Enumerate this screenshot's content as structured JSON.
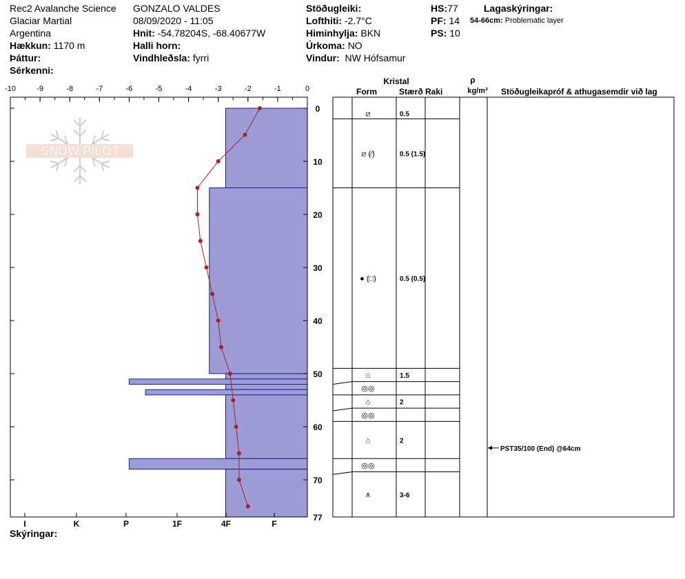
{
  "header": {
    "org": "Rec2 Avalanche Science",
    "location": "Glaciar Martial",
    "country": "Argentina",
    "elevation_label": "Hækkun:",
    "elevation": "1170 m",
    "layer_label": "Þáttur:",
    "features_label": "Sérkenni:",
    "observer": "GONZALO VALDES",
    "datetime": "08/09/2020 - 11:05",
    "coords_label": "Hnit:",
    "coords": "-54.78204S, -68.40677W",
    "slope_label": "Halli horn:",
    "wind_load_label": "Vindhleðsla:",
    "wind_load": "fyrri",
    "stability_label": "Stöðugleiki:",
    "air_temp_label": "Lofthiti:",
    "air_temp": "-2.7°C",
    "sky_label": "Himinhylja:",
    "sky": "BKN",
    "precip_label": "Úrkoma:",
    "precip": "NO",
    "wind_label": "Vindur:",
    "wind": "NW Hófsamur",
    "hs_label": "HS:",
    "hs": "77",
    "pf_label": "PF:",
    "pf": "14",
    "ps_label": "PS:",
    "ps": "10",
    "legend_title": "Lagaskýringar:",
    "legend_range": "54-66cm:",
    "legend_text": "Problematic layer",
    "footer_label": "Skýringar:"
  },
  "table": {
    "crystal": "Kristal",
    "form": "Form",
    "size": "Stærð",
    "moisture": "Raki",
    "rho": "ρ",
    "density_unit": "kg/m³",
    "tests_header": "Stöðugleikapróf & athugasemdir við lag",
    "test_note": "PST35/100 (End) @64cm",
    "test_depth": 64
  },
  "watermark": "SNOW PILOT",
  "colors": {
    "hardness_fill": "#9c9cd6",
    "hardness_stroke": "#1e1e96",
    "temp_line": "#b01e1e"
  },
  "chart_data": {
    "type": "line",
    "temperature_axis": [
      -10,
      -9,
      -8,
      -7,
      -6,
      -5,
      -4,
      -3,
      -2,
      -1,
      0
    ],
    "hardness_labels": [
      "I",
      "K",
      "P",
      "1F",
      "4F",
      "F"
    ],
    "depth_ticks": [
      0,
      10,
      20,
      30,
      40,
      50,
      60,
      70,
      77
    ],
    "ylim": [
      0,
      77
    ],
    "xlim": [
      -10,
      0
    ],
    "temperature_profile": [
      {
        "depth": 0,
        "temp": -1.6
      },
      {
        "depth": 5,
        "temp": -2.1
      },
      {
        "depth": 10,
        "temp": -3.0
      },
      {
        "depth": 15,
        "temp": -3.7
      },
      {
        "depth": 20,
        "temp": -3.7
      },
      {
        "depth": 25,
        "temp": -3.6
      },
      {
        "depth": 30,
        "temp": -3.4
      },
      {
        "depth": 35,
        "temp": -3.2
      },
      {
        "depth": 40,
        "temp": -3.0
      },
      {
        "depth": 45,
        "temp": -2.9
      },
      {
        "depth": 50,
        "temp": -2.6
      },
      {
        "depth": 55,
        "temp": -2.5
      },
      {
        "depth": 60,
        "temp": -2.4
      },
      {
        "depth": 65,
        "temp": -2.3
      },
      {
        "depth": 70,
        "temp": -2.3
      },
      {
        "depth": 75,
        "temp": -2.0
      }
    ],
    "hardness_layers": [
      {
        "top": 0,
        "bottom": 15,
        "hardness": -2.75
      },
      {
        "top": 15,
        "bottom": 50,
        "hardness": -3.3
      },
      {
        "top": 50,
        "bottom": 51,
        "hardness": -2.75
      },
      {
        "top": 51,
        "bottom": 52,
        "hardness": -6.0
      },
      {
        "top": 52,
        "bottom": 53,
        "hardness": -2.75
      },
      {
        "top": 53,
        "bottom": 54,
        "hardness": -5.45
      },
      {
        "top": 54,
        "bottom": 66,
        "hardness": -2.75
      },
      {
        "top": 66,
        "bottom": 68,
        "hardness": -6.0
      },
      {
        "top": 68,
        "bottom": 77,
        "hardness": -2.75
      }
    ],
    "layers_table": [
      {
        "top": 0,
        "bottom": 2,
        "form": "⧄",
        "size": "0.5"
      },
      {
        "top": 2,
        "bottom": 15,
        "form": "⧄ (⁄)",
        "size": "0.5 (1.5)"
      },
      {
        "top": 15,
        "bottom": 49,
        "form": "● (□)",
        "size": "0.5 (0.5)"
      },
      {
        "top": 49,
        "bottom": 51.5,
        "form": "⌂",
        "size": "1.5"
      },
      {
        "top": 51.5,
        "bottom": 54,
        "form": "◎◎",
        "size": ""
      },
      {
        "top": 54,
        "bottom": 56.5,
        "form": "⌂",
        "size": "2"
      },
      {
        "top": 56.5,
        "bottom": 59,
        "form": "◎◎",
        "size": ""
      },
      {
        "top": 59,
        "bottom": 66,
        "form": "⌂",
        "size": "2"
      },
      {
        "top": 66,
        "bottom": 68.5,
        "form": "◎◎",
        "size": ""
      },
      {
        "top": 68.5,
        "bottom": 77,
        "form": "∧",
        "size": "3-6"
      }
    ]
  }
}
